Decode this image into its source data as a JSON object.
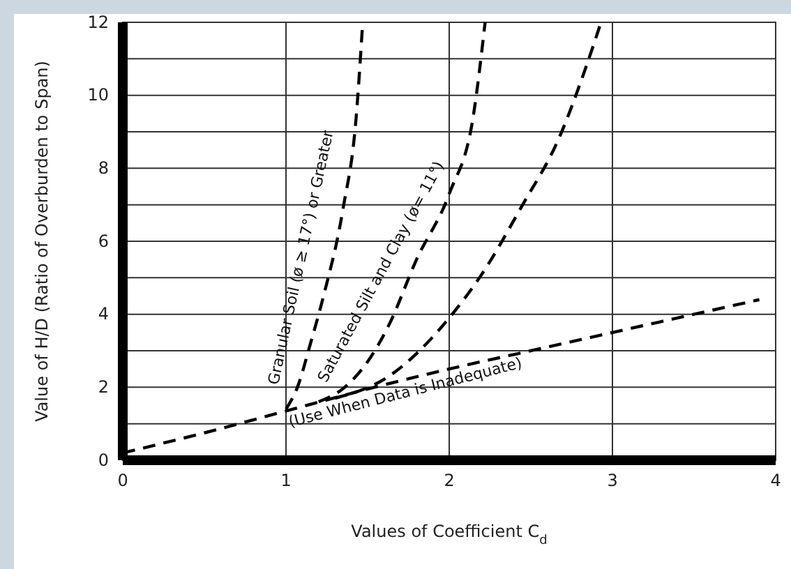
{
  "chart_data": {
    "type": "line",
    "xlabel": "Values of Coefficient C$_{d}$",
    "ylabel": "Value of H/D (Ratio of Overburden to Span)",
    "xlim": [
      0,
      4
    ],
    "ylim": [
      0,
      12
    ],
    "xticks": [
      0,
      1,
      2,
      3,
      4
    ],
    "yticks": [
      0,
      {
        "value": 1,
        "label": null
      },
      2,
      {
        "value": 3,
        "label": null
      },
      4,
      {
        "value": 5,
        "label": null
      },
      6,
      {
        "value": 7,
        "label": null
      },
      8,
      {
        "value": 9,
        "label": null
      },
      10,
      {
        "value": 11,
        "label": null
      },
      12
    ],
    "grid": true,
    "line_style": "dashed",
    "marker": "none",
    "legend": false,
    "series": [
      {
        "name": "(Use When Data is Inadequate)",
        "color": "#000000",
        "x": [
          0,
          0.5,
          1,
          1.5,
          2,
          2.5,
          3,
          3.5,
          3.9
        ],
        "values": [
          0.2,
          0.75,
          1.35,
          1.95,
          2.5,
          3.0,
          3.5,
          4.0,
          4.4
        ]
      },
      {
        "name": "Granular Soil (ø ≥ 17°) or Greater",
        "color": "#000000",
        "x": [
          1,
          1.07,
          1.15,
          1.23,
          1.35,
          1.43,
          1.47
        ],
        "values": [
          1.4,
          2.0,
          3.2,
          4.5,
          6.9,
          9.4,
          12
        ]
      },
      {
        "name": "Saturated Silt and Clay (ø= 11°)",
        "color": "#000000",
        "x": [
          1.2,
          1.36,
          1.5,
          1.63,
          1.8,
          2.0,
          2.15,
          2.22
        ],
        "values": [
          1.6,
          2.0,
          2.7,
          3.7,
          5.5,
          7.3,
          9.5,
          12
        ]
      },
      {
        "color": "#000000",
        "x": [
          1.3,
          1.63,
          2.0,
          2.2,
          2.45,
          2.67,
          2.84,
          2.93
        ],
        "values": [
          1.7,
          2.3,
          3.9,
          5.1,
          7.0,
          8.8,
          10.8,
          12
        ]
      }
    ]
  }
}
